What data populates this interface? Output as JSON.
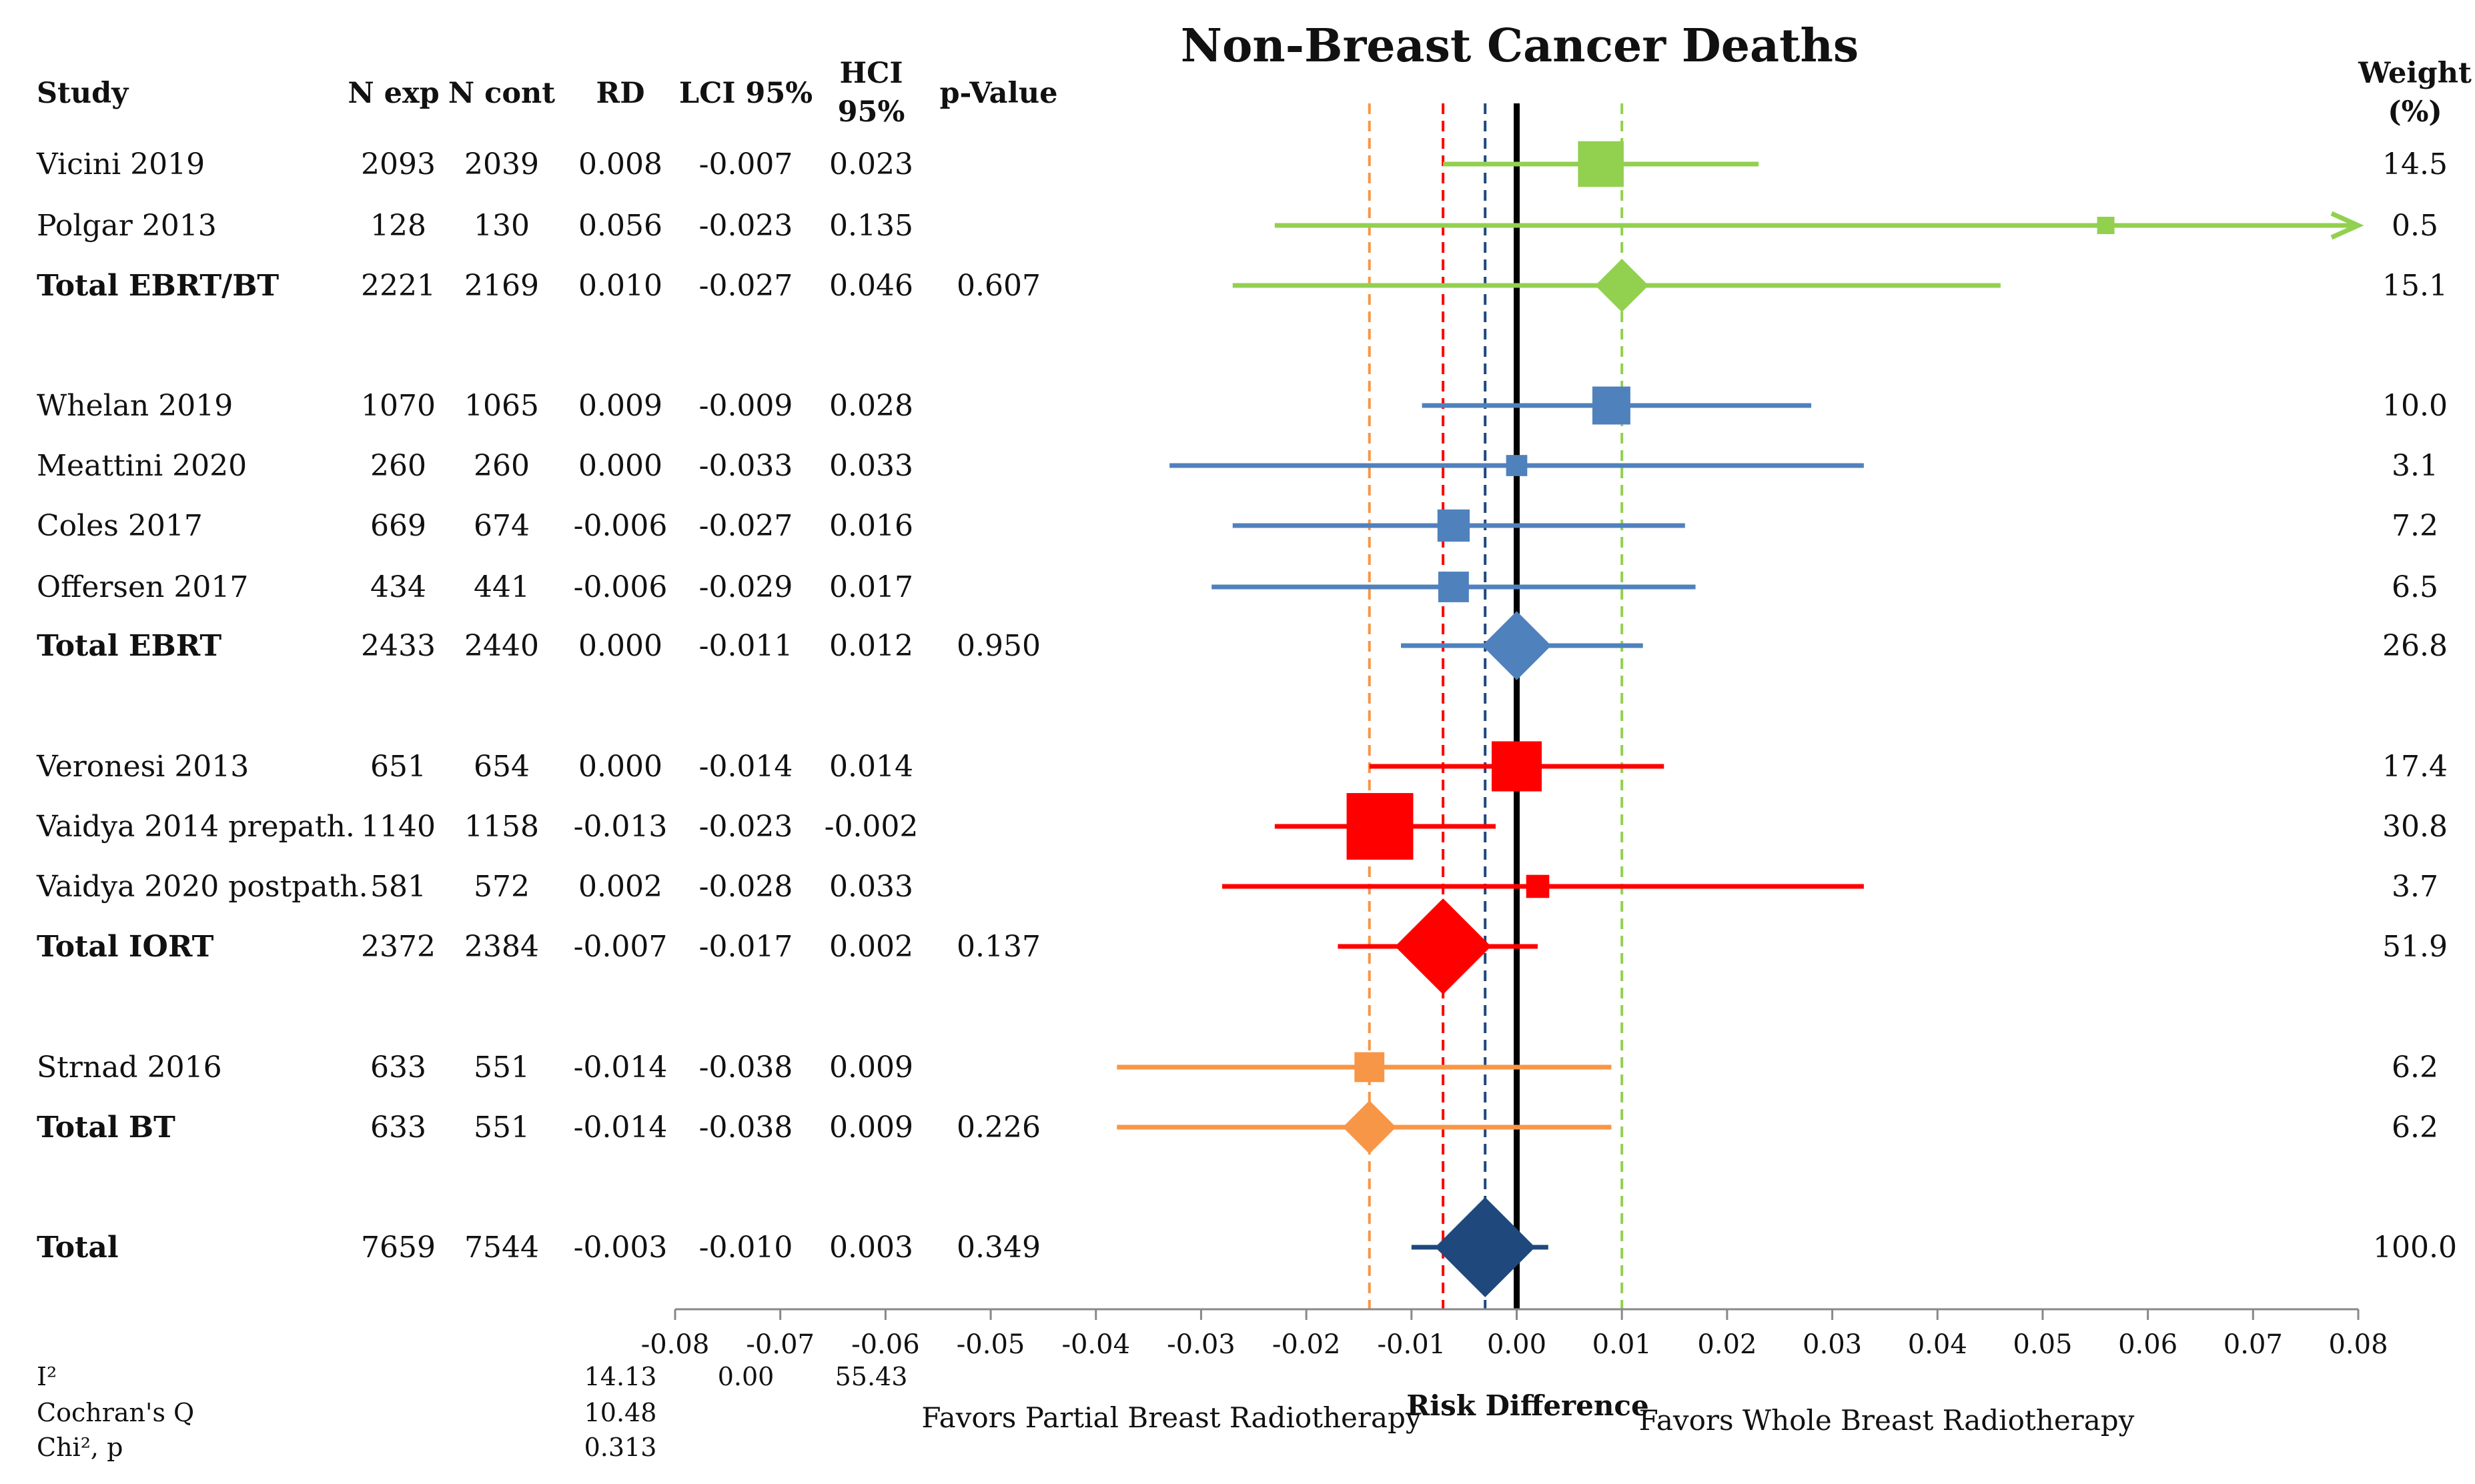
{
  "chart_data": {
    "type": "forest",
    "title": "Non-Breast Cancer Deaths",
    "columns": {
      "study": "Study",
      "n_exp": "N exp",
      "n_cont": "N cont",
      "rd": "RD",
      "lci_line1": "LCI 95%",
      "hci_line1": "HCI",
      "hci_line2": "95%",
      "pvalue": "p-Value",
      "weight_line1": "Weight",
      "weight_line2": "(%)"
    },
    "xlim": [
      -0.08,
      0.08
    ],
    "x_ticks": [
      "-0.08",
      "-0.07",
      "-0.06",
      "-0.05",
      "-0.04",
      "-0.03",
      "-0.02",
      "-0.01",
      "0.00",
      "0.01",
      "0.02",
      "0.03",
      "0.04",
      "0.05",
      "0.06",
      "0.07",
      "0.08"
    ],
    "xlabel": "Risk Difference",
    "favors_left": "Favors Partial Breast Radiotherapy",
    "favors_right": "Favors Whole Breast Radiotherapy",
    "rows": [
      {
        "study": "Vicini 2019",
        "n_exp": "2093",
        "n_cont": "2039",
        "rd": "0.008",
        "lci": "-0.007",
        "hci": "0.023",
        "p": "",
        "weight": "14.5",
        "kind": "study",
        "group": "ebrt_bt"
      },
      {
        "study": "Polgar 2013",
        "n_exp": "128",
        "n_cont": "130",
        "rd": "0.056",
        "lci": "-0.023",
        "hci": "0.135",
        "p": "",
        "weight": "0.5",
        "kind": "study",
        "group": "ebrt_bt",
        "arrow": true
      },
      {
        "study": "Total EBRT/BT",
        "n_exp": "2221",
        "n_cont": "2169",
        "rd": "0.010",
        "lci": "-0.027",
        "hci": "0.046",
        "p": "0.607",
        "weight": "15.1",
        "kind": "total",
        "group": "ebrt_bt"
      },
      {
        "study": "Whelan 2019",
        "n_exp": "1070",
        "n_cont": "1065",
        "rd": "0.009",
        "lci": "-0.009",
        "hci": "0.028",
        "p": "",
        "weight": "10.0",
        "kind": "study",
        "group": "ebrt"
      },
      {
        "study": "Meattini 2020",
        "n_exp": "260",
        "n_cont": "260",
        "rd": "0.000",
        "lci": "-0.033",
        "hci": "0.033",
        "p": "",
        "weight": "3.1",
        "kind": "study",
        "group": "ebrt"
      },
      {
        "study": "Coles 2017",
        "n_exp": "669",
        "n_cont": "674",
        "rd": "-0.006",
        "lci": "-0.027",
        "hci": "0.016",
        "p": "",
        "weight": "7.2",
        "kind": "study",
        "group": "ebrt"
      },
      {
        "study": "Offersen 2017",
        "n_exp": "434",
        "n_cont": "441",
        "rd": "-0.006",
        "lci": "-0.029",
        "hci": "0.017",
        "p": "",
        "weight": "6.5",
        "kind": "study",
        "group": "ebrt"
      },
      {
        "study": "Total EBRT",
        "n_exp": "2433",
        "n_cont": "2440",
        "rd": "0.000",
        "lci": "-0.011",
        "hci": "0.012",
        "p": "0.950",
        "weight": "26.8",
        "kind": "total",
        "group": "ebrt"
      },
      {
        "study": "Veronesi 2013",
        "n_exp": "651",
        "n_cont": "654",
        "rd": "0.000",
        "lci": "-0.014",
        "hci": "0.014",
        "p": "",
        "weight": "17.4",
        "kind": "study",
        "group": "iort"
      },
      {
        "study": "Vaidya 2014 prepath.",
        "n_exp": "1140",
        "n_cont": "1158",
        "rd": "-0.013",
        "lci": "-0.023",
        "hci": "-0.002",
        "p": "",
        "weight": "30.8",
        "kind": "study",
        "group": "iort"
      },
      {
        "study": "Vaidya 2020 postpath.",
        "n_exp": "581",
        "n_cont": "572",
        "rd": "0.002",
        "lci": "-0.028",
        "hci": "0.033",
        "p": "",
        "weight": "3.7",
        "kind": "study",
        "group": "iort"
      },
      {
        "study": "Total IORT",
        "n_exp": "2372",
        "n_cont": "2384",
        "rd": "-0.007",
        "lci": "-0.017",
        "hci": "0.002",
        "p": "0.137",
        "weight": "51.9",
        "kind": "total",
        "group": "iort"
      },
      {
        "study": "Strnad 2016",
        "n_exp": "633",
        "n_cont": "551",
        "rd": "-0.014",
        "lci": "-0.038",
        "hci": "0.009",
        "p": "",
        "weight": "6.2",
        "kind": "study",
        "group": "bt"
      },
      {
        "study": "Total BT",
        "n_exp": "633",
        "n_cont": "551",
        "rd": "-0.014",
        "lci": "-0.038",
        "hci": "0.009",
        "p": "0.226",
        "weight": "6.2",
        "kind": "total",
        "group": "bt"
      },
      {
        "study": "Total",
        "n_exp": "7659",
        "n_cont": "7544",
        "rd": "-0.003",
        "lci": "-0.010",
        "hci": "0.003",
        "p": "0.349",
        "weight": "100.0",
        "kind": "overall",
        "group": "overall"
      }
    ],
    "group_colors": {
      "ebrt_bt": "#92D050",
      "ebrt": "#4F81BD",
      "iort": "#FF0000",
      "bt": "#F79646",
      "overall": "#1F497D"
    },
    "reference_lines": [
      {
        "x": -0.014,
        "color": "#F79646",
        "style": "dashed"
      },
      {
        "x": -0.007,
        "color": "#FF0000",
        "style": "dashed"
      },
      {
        "x": -0.003,
        "color": "#1F497D",
        "style": "dashed"
      },
      {
        "x": 0.0,
        "color": "#000000",
        "style": "solid"
      },
      {
        "x": 0.01,
        "color": "#92D050",
        "style": "dashed"
      }
    ],
    "heterogeneity": {
      "i2_label": "I²",
      "i2_values": [
        "14.13",
        "0.00",
        "55.43"
      ],
      "q_label": "Cochran's Q",
      "q_value": "10.48",
      "chi_label": "Chi², p",
      "chi_value": "0.313"
    }
  }
}
